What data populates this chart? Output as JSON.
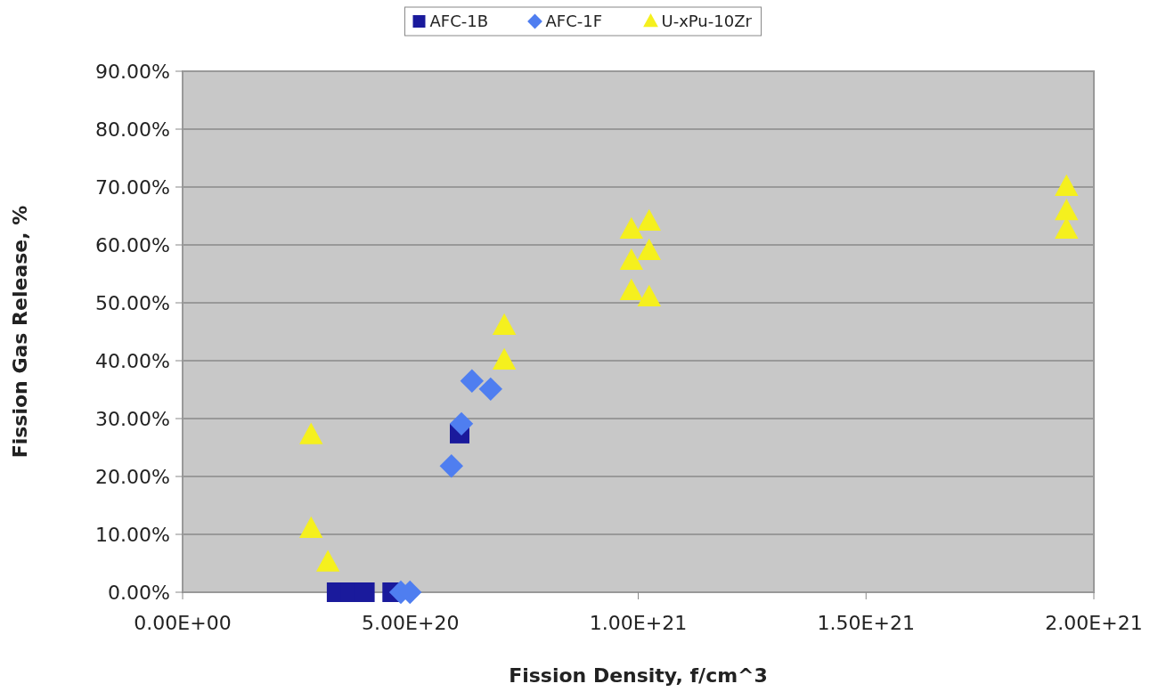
{
  "chart_data": {
    "type": "scatter",
    "xlabel": "Fission Density, f/cm^3",
    "ylabel": "Fission Gas Release, %",
    "legend": "top",
    "grid": "y",
    "xlim": [
      0,
      2e+21
    ],
    "xticks": [
      {
        "value": 0,
        "label": "0.00E+00"
      },
      {
        "value": 5e+20,
        "label": "5.00E+20"
      },
      {
        "value": 1e+21,
        "label": "1.00E+21"
      },
      {
        "value": 1.5e+21,
        "label": "1.50E+21"
      },
      {
        "value": 2e+21,
        "label": "2.00E+21"
      }
    ],
    "ylim": [
      0,
      90
    ],
    "yticks": [
      {
        "value": 0,
        "label": "0.00%"
      },
      {
        "value": 10,
        "label": "10.00%"
      },
      {
        "value": 20,
        "label": "20.00%"
      },
      {
        "value": 30,
        "label": "30.00%"
      },
      {
        "value": 40,
        "label": "40.00%"
      },
      {
        "value": 50,
        "label": "50.00%"
      },
      {
        "value": 60,
        "label": "60.00%"
      },
      {
        "value": 70,
        "label": "70.00%"
      },
      {
        "value": 80,
        "label": "80.00%"
      },
      {
        "value": 90,
        "label": "90.00%"
      }
    ],
    "series": [
      {
        "name": "AFC-1B",
        "color": "#1a1a9c",
        "marker": "square",
        "x": [
          3.38e+20,
          3.69e+20,
          4e+20,
          4.6e+20,
          6.08e+20
        ],
        "values": [
          0,
          0,
          0,
          0,
          27.4
        ]
      },
      {
        "name": "AFC-1F",
        "color": "#4f7ef0",
        "marker": "diamond",
        "x": [
          6.35e+20,
          6.76e+20,
          6.12e+20,
          5.9e+20,
          4.79e+20,
          4.99e+20
        ],
        "values": [
          36.5,
          35.1,
          29.1,
          21.8,
          0,
          0
        ]
      },
      {
        "name": "U-xPu-10Zr",
        "color": "#f5f01e",
        "marker": "triangle",
        "x": [
          2.82e+20,
          2.82e+20,
          3.19e+20,
          7.06e+20,
          7.06e+20,
          9.85e+20,
          1.024e+21,
          9.85e+20,
          1.024e+21,
          9.85e+20,
          1.024e+21,
          1.94e+21,
          1.94e+21,
          1.94e+21
        ],
        "values": [
          27.1,
          10.9,
          5.1,
          40,
          46,
          62.6,
          64,
          57.2,
          58.9,
          52,
          50.9,
          70,
          65.8,
          62.6
        ]
      }
    ]
  }
}
